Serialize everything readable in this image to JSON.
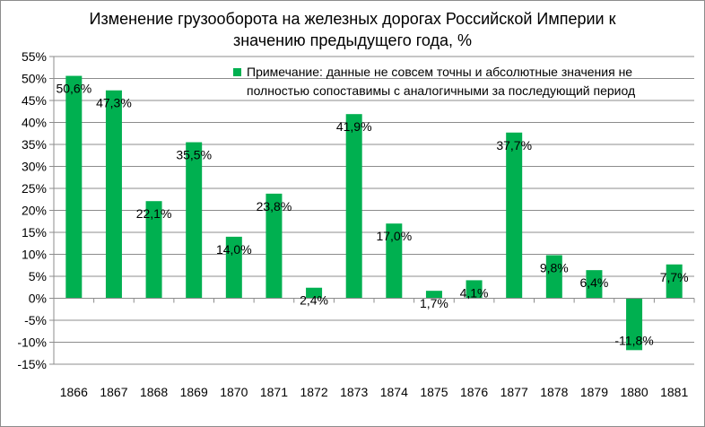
{
  "chart_data": {
    "type": "bar",
    "title": "Изменение грузооборота на железных дорогах Российской Империи к значению предыдущего года, %",
    "title_lines": [
      "Изменение грузооборота на железных дорогах Российской Империи к",
      "значению предыдущего года, %"
    ],
    "xlabel": "",
    "ylabel": "",
    "categories": [
      "1866",
      "1867",
      "1868",
      "1869",
      "1870",
      "1871",
      "1872",
      "1873",
      "1874",
      "1875",
      "1876",
      "1877",
      "1878",
      "1879",
      "1880",
      "1881"
    ],
    "values": [
      50.6,
      47.3,
      22.1,
      35.5,
      14.0,
      23.8,
      2.4,
      41.9,
      17.0,
      1.7,
      4.1,
      37.7,
      9.8,
      6.4,
      -11.8,
      7.7
    ],
    "data_labels": [
      "50,6%",
      "47,3%",
      "22,1%",
      "35,5%",
      "14,0%",
      "23,8%",
      "2,4%",
      "41,9%",
      "17,0%",
      "1,7%",
      "4,1%",
      "37,7%",
      "9,8%",
      "6,4%",
      "-11,8%",
      "7,7%"
    ],
    "ylim": [
      -15,
      55
    ],
    "yticks": [
      -15,
      -10,
      -5,
      0,
      5,
      10,
      15,
      20,
      25,
      30,
      35,
      40,
      45,
      50,
      55
    ],
    "ytick_labels": [
      "-15%",
      "-10%",
      "-5%",
      "0%",
      "5%",
      "10%",
      "15%",
      "20%",
      "25%",
      "30%",
      "35%",
      "40%",
      "45%",
      "50%",
      "55%"
    ],
    "grid": true,
    "bar_color": "#00b050",
    "legend": {
      "placement": "top-right",
      "lines": [
        "Примечание: данные не совсем точны и абсолютные значения не",
        "полностью сопоставимы с аналогичными за последующий период"
      ]
    }
  }
}
